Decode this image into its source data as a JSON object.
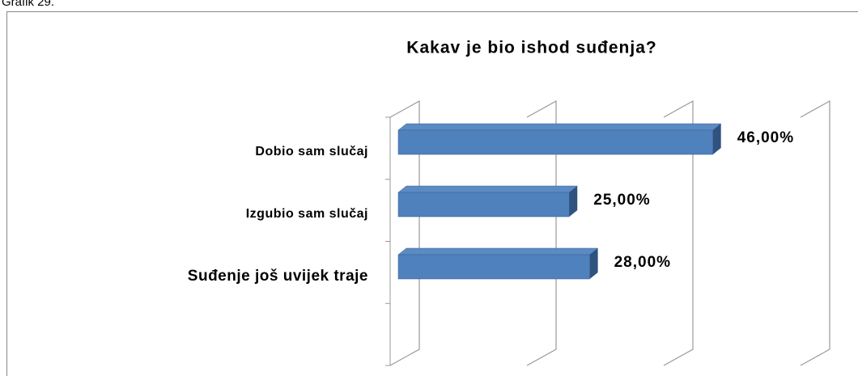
{
  "caption": "Grafik 29.",
  "chart_data": {
    "type": "bar3d",
    "title": "Kakav je bio ishod suđenja?",
    "categories": [
      "Dobio sam slučaj",
      "Izgubio sam slučaj",
      "Suđenje još uvijek traje"
    ],
    "values": [
      46,
      25,
      28
    ],
    "value_labels": [
      "46,00%",
      "25,00%",
      "28,00%"
    ],
    "color": "#4f81bd",
    "xlim": [
      0,
      60
    ],
    "xticks": [
      0,
      20,
      40,
      60
    ],
    "grid": true
  }
}
